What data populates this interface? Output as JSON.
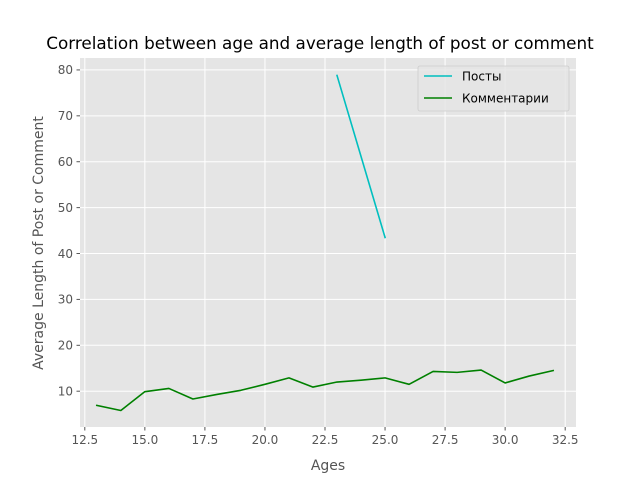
{
  "chart_data": {
    "type": "line",
    "title": "Correlation between age and average length of post or comment",
    "xlabel": "Ages",
    "ylabel": "Average Length of Post or Comment",
    "xlim": [
      12.3,
      32.95
    ],
    "ylim": [
      2.2,
      82.6
    ],
    "xticks": [
      12.5,
      15.0,
      17.5,
      20.0,
      22.5,
      25.0,
      27.5,
      30.0,
      32.5
    ],
    "xtick_labels": [
      "12.5",
      "15.0",
      "17.5",
      "20.0",
      "22.5",
      "25.0",
      "27.5",
      "30.0",
      "32.5"
    ],
    "yticks": [
      10,
      20,
      30,
      40,
      50,
      60,
      70,
      80
    ],
    "ytick_labels": [
      "10",
      "20",
      "30",
      "40",
      "50",
      "60",
      "70",
      "80"
    ],
    "grid": true,
    "legend_position": "top-right",
    "series": [
      {
        "name": "Посты",
        "color": "#00bfbf",
        "x": [
          23,
          25
        ],
        "y": [
          78.8,
          43.5
        ]
      },
      {
        "name": "Комментарии",
        "color": "#008000",
        "x": [
          13,
          14,
          15,
          16,
          17,
          18,
          19,
          20,
          21,
          22,
          23,
          24,
          25,
          26,
          27,
          28,
          29,
          30,
          31,
          32
        ],
        "y": [
          6.9,
          5.8,
          9.9,
          10.6,
          8.3,
          9.3,
          10.2,
          11.5,
          12.9,
          10.9,
          12.0,
          12.4,
          12.9,
          11.5,
          14.3,
          14.1,
          14.6,
          11.8,
          13.3,
          14.5
        ]
      }
    ]
  }
}
